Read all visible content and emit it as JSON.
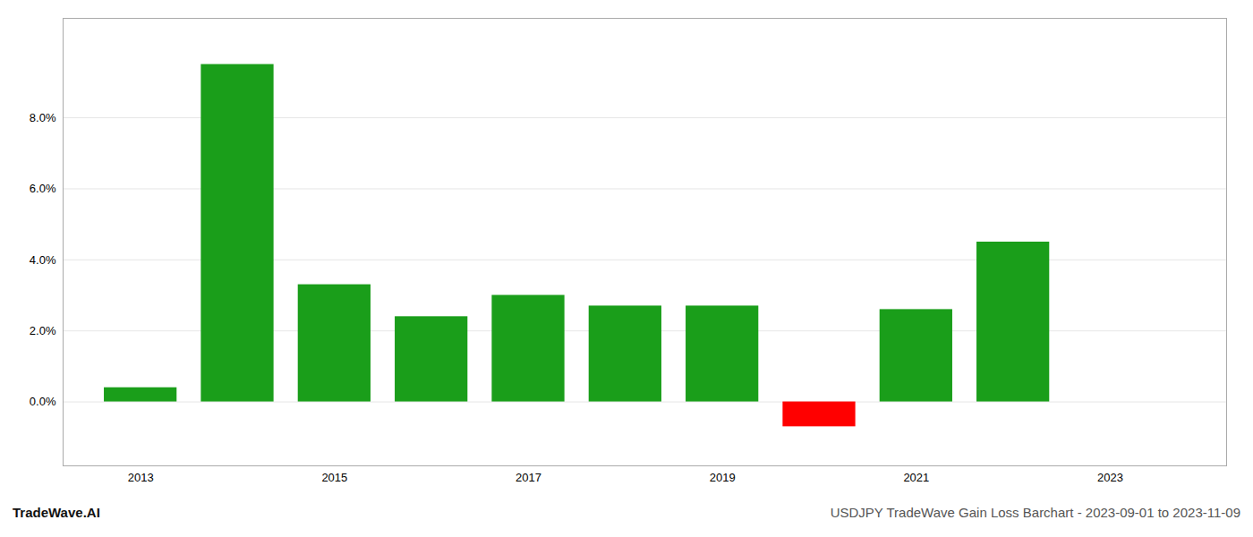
{
  "chart_data": {
    "type": "bar",
    "x": [
      2013,
      2014,
      2015,
      2016,
      2017,
      2018,
      2019,
      2020,
      2021,
      2022,
      2023
    ],
    "values": [
      0.004,
      0.095,
      0.033,
      0.024,
      0.03,
      0.027,
      0.027,
      -0.007,
      0.026,
      0.045,
      0.0
    ],
    "colors": [
      "#1a9e1a",
      "#1a9e1a",
      "#1a9e1a",
      "#1a9e1a",
      "#1a9e1a",
      "#1a9e1a",
      "#1a9e1a",
      "#ff0000",
      "#1a9e1a",
      "#1a9e1a",
      "#1a9e1a"
    ],
    "xlim": [
      2012.2,
      2024.2
    ],
    "xticks": [
      2013,
      2015,
      2017,
      2019,
      2021,
      2023
    ],
    "ylim": [
      -0.018,
      0.108
    ],
    "yticks": [
      {
        "value": 0.0,
        "label": "0.0%"
      },
      {
        "value": 0.02,
        "label": "2.0%"
      },
      {
        "value": 0.04,
        "label": "4.0%"
      },
      {
        "value": 0.06,
        "label": "6.0%"
      },
      {
        "value": 0.08,
        "label": "8.0%"
      }
    ],
    "grid": true,
    "annotations": [
      "TradeWave.AI",
      "USDJPY TradeWave Gain Loss Barchart - 2023-09-01 to 2023-11-09"
    ]
  }
}
